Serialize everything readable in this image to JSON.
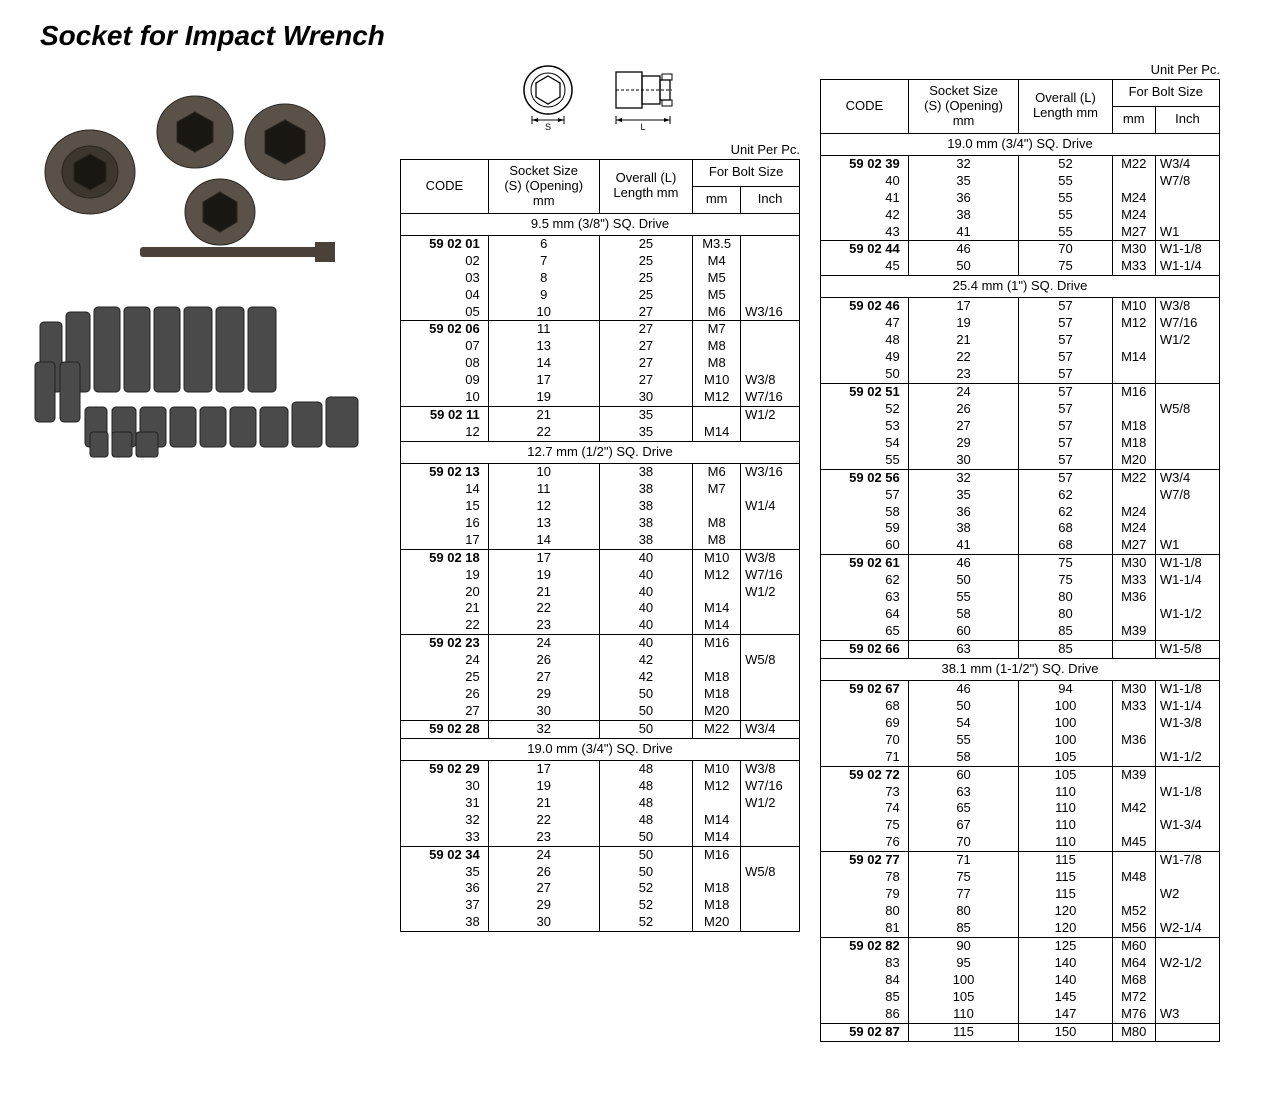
{
  "title": "Socket for Impact Wrench",
  "unit_label": "Unit Per Pc.",
  "header": {
    "code": "CODE",
    "socket": "Socket Size\n(S) (Opening)\nmm",
    "overall": "Overall (L)\nLength mm",
    "bolt": "For Bolt Size",
    "mm": "mm",
    "inch": "Inch"
  },
  "table_left": {
    "sections": [
      {
        "title": "9.5 mm (3/8\") SQ. Drive",
        "groups": [
          [
            {
              "code": "59 02 01",
              "s": "6",
              "l": "25",
              "mm": "M3.5",
              "in": ""
            },
            {
              "code": "02",
              "s": "7",
              "l": "25",
              "mm": "M4",
              "in": ""
            },
            {
              "code": "03",
              "s": "8",
              "l": "25",
              "mm": "M5",
              "in": ""
            },
            {
              "code": "04",
              "s": "9",
              "l": "25",
              "mm": "M5",
              "in": ""
            },
            {
              "code": "05",
              "s": "10",
              "l": "27",
              "mm": "M6",
              "in": "W3/16"
            }
          ],
          [
            {
              "code": "59 02 06",
              "s": "11",
              "l": "27",
              "mm": "M7",
              "in": ""
            },
            {
              "code": "07",
              "s": "13",
              "l": "27",
              "mm": "M8",
              "in": ""
            },
            {
              "code": "08",
              "s": "14",
              "l": "27",
              "mm": "M8",
              "in": ""
            },
            {
              "code": "09",
              "s": "17",
              "l": "27",
              "mm": "M10",
              "in": "W3/8"
            },
            {
              "code": "10",
              "s": "19",
              "l": "30",
              "mm": "M12",
              "in": "W7/16"
            }
          ],
          [
            {
              "code": "59 02 11",
              "s": "21",
              "l": "35",
              "mm": "",
              "in": "W1/2"
            },
            {
              "code": "12",
              "s": "22",
              "l": "35",
              "mm": "M14",
              "in": ""
            }
          ]
        ]
      },
      {
        "title": "12.7 mm (1/2\") SQ. Drive",
        "groups": [
          [
            {
              "code": "59 02 13",
              "s": "10",
              "l": "38",
              "mm": "M6",
              "in": "W3/16"
            },
            {
              "code": "14",
              "s": "11",
              "l": "38",
              "mm": "M7",
              "in": ""
            },
            {
              "code": "15",
              "s": "12",
              "l": "38",
              "mm": "",
              "in": "W1/4"
            },
            {
              "code": "16",
              "s": "13",
              "l": "38",
              "mm": "M8",
              "in": ""
            },
            {
              "code": "17",
              "s": "14",
              "l": "38",
              "mm": "M8",
              "in": ""
            }
          ],
          [
            {
              "code": "59 02 18",
              "s": "17",
              "l": "40",
              "mm": "M10",
              "in": "W3/8"
            },
            {
              "code": "19",
              "s": "19",
              "l": "40",
              "mm": "M12",
              "in": "W7/16"
            },
            {
              "code": "20",
              "s": "21",
              "l": "40",
              "mm": "",
              "in": "W1/2"
            },
            {
              "code": "21",
              "s": "22",
              "l": "40",
              "mm": "M14",
              "in": ""
            },
            {
              "code": "22",
              "s": "23",
              "l": "40",
              "mm": "M14",
              "in": ""
            }
          ],
          [
            {
              "code": "59 02 23",
              "s": "24",
              "l": "40",
              "mm": "M16",
              "in": ""
            },
            {
              "code": "24",
              "s": "26",
              "l": "42",
              "mm": "",
              "in": "W5/8"
            },
            {
              "code": "25",
              "s": "27",
              "l": "42",
              "mm": "M18",
              "in": ""
            },
            {
              "code": "26",
              "s": "29",
              "l": "50",
              "mm": "M18",
              "in": ""
            },
            {
              "code": "27",
              "s": "30",
              "l": "50",
              "mm": "M20",
              "in": ""
            }
          ],
          [
            {
              "code": "59 02 28",
              "s": "32",
              "l": "50",
              "mm": "M22",
              "in": "W3/4"
            }
          ]
        ]
      },
      {
        "title": "19.0 mm (3/4\") SQ. Drive",
        "groups": [
          [
            {
              "code": "59 02 29",
              "s": "17",
              "l": "48",
              "mm": "M10",
              "in": "W3/8"
            },
            {
              "code": "30",
              "s": "19",
              "l": "48",
              "mm": "M12",
              "in": "W7/16"
            },
            {
              "code": "31",
              "s": "21",
              "l": "48",
              "mm": "",
              "in": "W1/2"
            },
            {
              "code": "32",
              "s": "22",
              "l": "48",
              "mm": "M14",
              "in": ""
            },
            {
              "code": "33",
              "s": "23",
              "l": "50",
              "mm": "M14",
              "in": ""
            }
          ],
          [
            {
              "code": "59 02 34",
              "s": "24",
              "l": "50",
              "mm": "M16",
              "in": ""
            },
            {
              "code": "35",
              "s": "26",
              "l": "50",
              "mm": "",
              "in": "W5/8"
            },
            {
              "code": "36",
              "s": "27",
              "l": "52",
              "mm": "M18",
              "in": ""
            },
            {
              "code": "37",
              "s": "29",
              "l": "52",
              "mm": "M18",
              "in": ""
            },
            {
              "code": "38",
              "s": "30",
              "l": "52",
              "mm": "M20",
              "in": ""
            }
          ]
        ]
      }
    ]
  },
  "table_right": {
    "sections": [
      {
        "title": "19.0 mm (3/4\") SQ. Drive",
        "groups": [
          [
            {
              "code": "59 02 39",
              "s": "32",
              "l": "52",
              "mm": "M22",
              "in": "W3/4"
            },
            {
              "code": "40",
              "s": "35",
              "l": "55",
              "mm": "",
              "in": "W7/8"
            },
            {
              "code": "41",
              "s": "36",
              "l": "55",
              "mm": "M24",
              "in": ""
            },
            {
              "code": "42",
              "s": "38",
              "l": "55",
              "mm": "M24",
              "in": ""
            },
            {
              "code": "43",
              "s": "41",
              "l": "55",
              "mm": "M27",
              "in": "W1"
            }
          ],
          [
            {
              "code": "59 02 44",
              "s": "46",
              "l": "70",
              "mm": "M30",
              "in": "W1-1/8"
            },
            {
              "code": "45",
              "s": "50",
              "l": "75",
              "mm": "M33",
              "in": "W1-1/4"
            }
          ]
        ]
      },
      {
        "title": "25.4 mm (1\") SQ. Drive",
        "groups": [
          [
            {
              "code": "59 02 46",
              "s": "17",
              "l": "57",
              "mm": "M10",
              "in": "W3/8"
            },
            {
              "code": "47",
              "s": "19",
              "l": "57",
              "mm": "M12",
              "in": "W7/16"
            },
            {
              "code": "48",
              "s": "21",
              "l": "57",
              "mm": "",
              "in": "W1/2"
            },
            {
              "code": "49",
              "s": "22",
              "l": "57",
              "mm": "M14",
              "in": ""
            },
            {
              "code": "50",
              "s": "23",
              "l": "57",
              "mm": "",
              "in": ""
            }
          ],
          [
            {
              "code": "59 02 51",
              "s": "24",
              "l": "57",
              "mm": "M16",
              "in": ""
            },
            {
              "code": "52",
              "s": "26",
              "l": "57",
              "mm": "",
              "in": "W5/8"
            },
            {
              "code": "53",
              "s": "27",
              "l": "57",
              "mm": "M18",
              "in": ""
            },
            {
              "code": "54",
              "s": "29",
              "l": "57",
              "mm": "M18",
              "in": ""
            },
            {
              "code": "55",
              "s": "30",
              "l": "57",
              "mm": "M20",
              "in": ""
            }
          ],
          [
            {
              "code": "59 02 56",
              "s": "32",
              "l": "57",
              "mm": "M22",
              "in": "W3/4"
            },
            {
              "code": "57",
              "s": "35",
              "l": "62",
              "mm": "",
              "in": "W7/8"
            },
            {
              "code": "58",
              "s": "36",
              "l": "62",
              "mm": "M24",
              "in": ""
            },
            {
              "code": "59",
              "s": "38",
              "l": "68",
              "mm": "M24",
              "in": ""
            },
            {
              "code": "60",
              "s": "41",
              "l": "68",
              "mm": "M27",
              "in": "W1"
            }
          ],
          [
            {
              "code": "59 02 61",
              "s": "46",
              "l": "75",
              "mm": "M30",
              "in": "W1-1/8"
            },
            {
              "code": "62",
              "s": "50",
              "l": "75",
              "mm": "M33",
              "in": "W1-1/4"
            },
            {
              "code": "63",
              "s": "55",
              "l": "80",
              "mm": "M36",
              "in": ""
            },
            {
              "code": "64",
              "s": "58",
              "l": "80",
              "mm": "",
              "in": "W1-1/2"
            },
            {
              "code": "65",
              "s": "60",
              "l": "85",
              "mm": "M39",
              "in": ""
            }
          ],
          [
            {
              "code": "59 02 66",
              "s": "63",
              "l": "85",
              "mm": "",
              "in": "W1-5/8"
            }
          ]
        ]
      },
      {
        "title": "38.1 mm (1-1/2\") SQ. Drive",
        "groups": [
          [
            {
              "code": "59 02 67",
              "s": "46",
              "l": "94",
              "mm": "M30",
              "in": "W1-1/8"
            },
            {
              "code": "68",
              "s": "50",
              "l": "100",
              "mm": "M33",
              "in": "W1-1/4"
            },
            {
              "code": "69",
              "s": "54",
              "l": "100",
              "mm": "",
              "in": "W1-3/8"
            },
            {
              "code": "70",
              "s": "55",
              "l": "100",
              "mm": "M36",
              "in": ""
            },
            {
              "code": "71",
              "s": "58",
              "l": "105",
              "mm": "",
              "in": "W1-1/2"
            }
          ],
          [
            {
              "code": "59 02 72",
              "s": "60",
              "l": "105",
              "mm": "M39",
              "in": ""
            },
            {
              "code": "73",
              "s": "63",
              "l": "110",
              "mm": "",
              "in": "W1-1/8"
            },
            {
              "code": "74",
              "s": "65",
              "l": "110",
              "mm": "M42",
              "in": ""
            },
            {
              "code": "75",
              "s": "67",
              "l": "110",
              "mm": "",
              "in": "W1-3/4"
            },
            {
              "code": "76",
              "s": "70",
              "l": "110",
              "mm": "M45",
              "in": ""
            }
          ],
          [
            {
              "code": "59 02 77",
              "s": "71",
              "l": "115",
              "mm": "",
              "in": "W1-7/8"
            },
            {
              "code": "78",
              "s": "75",
              "l": "115",
              "mm": "M48",
              "in": ""
            },
            {
              "code": "79",
              "s": "77",
              "l": "115",
              "mm": "",
              "in": "W2"
            },
            {
              "code": "80",
              "s": "80",
              "l": "120",
              "mm": "M52",
              "in": ""
            },
            {
              "code": "81",
              "s": "85",
              "l": "120",
              "mm": "M56",
              "in": "W2-1/4"
            }
          ],
          [
            {
              "code": "59 02 82",
              "s": "90",
              "l": "125",
              "mm": "M60",
              "in": ""
            },
            {
              "code": "83",
              "s": "95",
              "l": "140",
              "mm": "M64",
              "in": "W2-1/2"
            },
            {
              "code": "84",
              "s": "100",
              "l": "140",
              "mm": "M68",
              "in": ""
            },
            {
              "code": "85",
              "s": "105",
              "l": "145",
              "mm": "M72",
              "in": ""
            },
            {
              "code": "86",
              "s": "110",
              "l": "147",
              "mm": "M76",
              "in": "W3"
            }
          ],
          [
            {
              "code": "59 02 87",
              "s": "115",
              "l": "150",
              "mm": "M80",
              "in": ""
            }
          ]
        ]
      }
    ]
  }
}
